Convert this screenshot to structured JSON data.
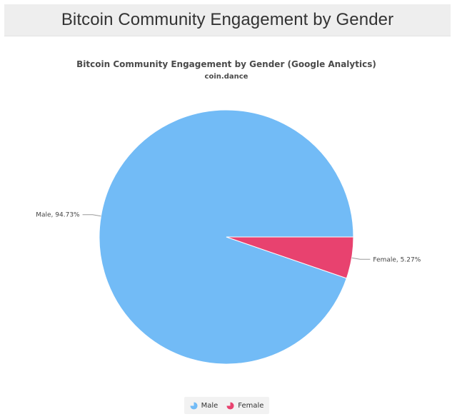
{
  "page": {
    "heading": "Bitcoin Community Engagement by Gender"
  },
  "chart_data": {
    "type": "pie",
    "title": "Bitcoin Community Engagement by Gender (Google Analytics)",
    "subtitle": "coin.dance",
    "slices": [
      {
        "label": "Male",
        "value": 94.73,
        "data_label": "Male, 94.73%",
        "color": "#72bbf6"
      },
      {
        "label": "Female",
        "value": 5.27,
        "data_label": "Female, 5.27%",
        "color": "#e8426f"
      }
    ],
    "legend": {
      "placement": "bottom-center",
      "entries": [
        "Male",
        "Female"
      ]
    }
  }
}
